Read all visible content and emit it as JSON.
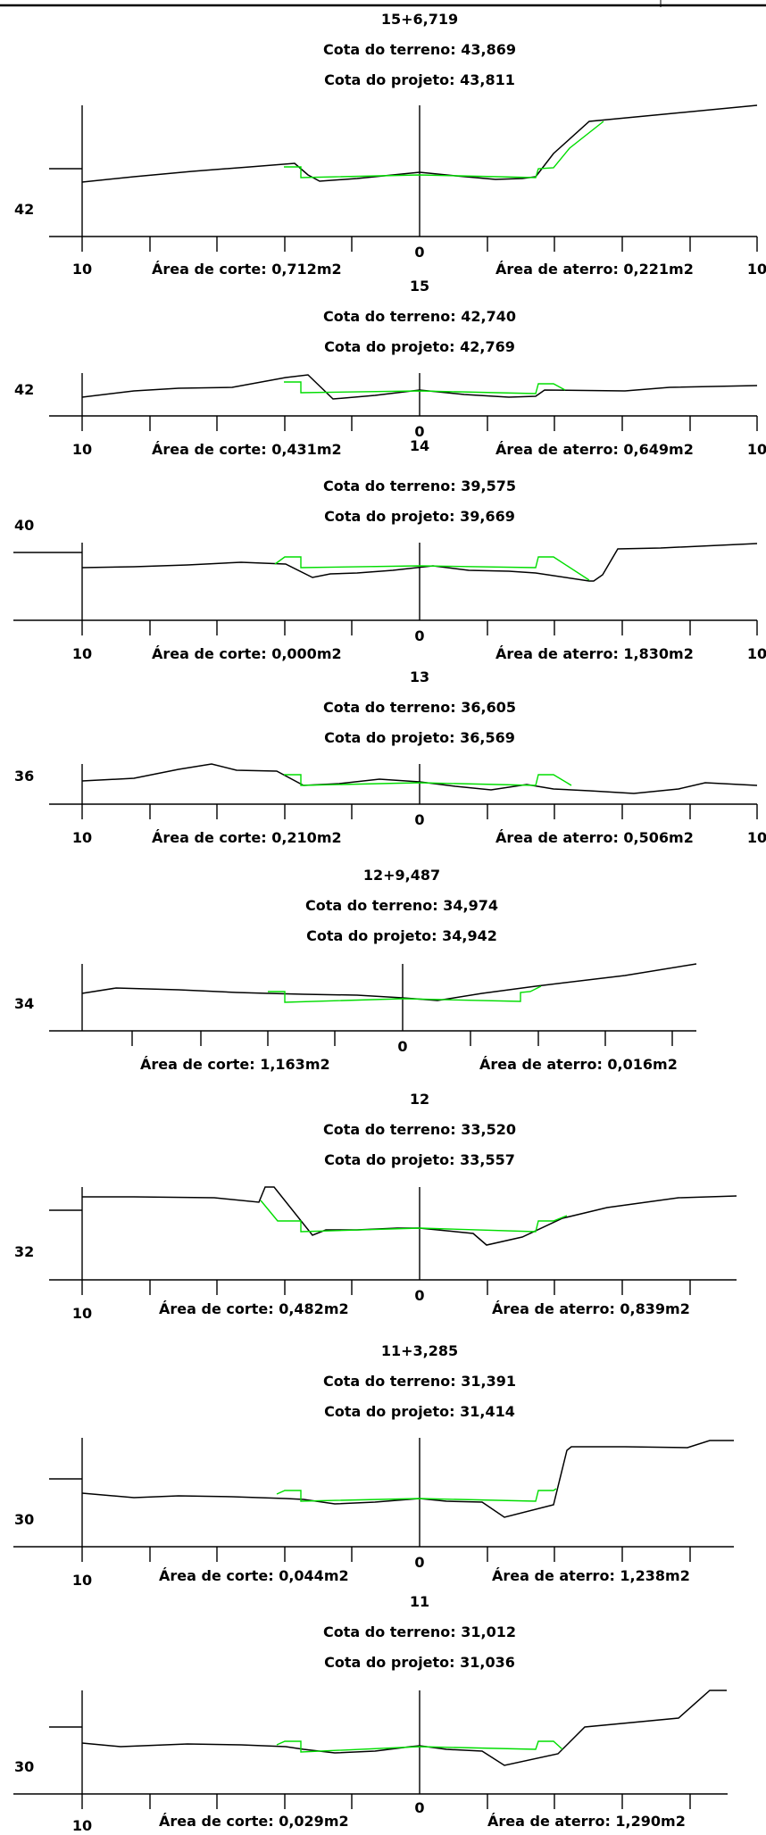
{
  "sections": [
    {
      "station": "15+6,719",
      "terreno_label": "Cota do terreno: 43,869",
      "projeto_label": "Cota do projeto: 43,811",
      "elev_label": "42",
      "center_label": "0",
      "left_offset_label": "10",
      "right_offset_label": "10",
      "corte_label": "Área de corte: 0,712m2",
      "aterro_label": "Área de aterro: 0,221m2"
    },
    {
      "station": "15",
      "terreno_label": "Cota do terreno: 42,740",
      "projeto_label": "Cota do projeto: 42,769",
      "elev_label": "42",
      "center_label": "0",
      "left_offset_label": "10",
      "right_offset_label": "10",
      "corte_label": "Área de corte: 0,431m2",
      "aterro_label": "Área de aterro: 0,649m2"
    },
    {
      "station": "14",
      "terreno_label": "Cota do terreno: 39,575",
      "projeto_label": "Cota do projeto: 39,669",
      "elev_label": "40",
      "center_label": "0",
      "left_offset_label": "10",
      "right_offset_label": "10",
      "corte_label": "Área de corte: 0,000m2",
      "aterro_label": "Área de aterro: 1,830m2"
    },
    {
      "station": "13",
      "terreno_label": "Cota do terreno: 36,605",
      "projeto_label": "Cota do projeto: 36,569",
      "elev_label": "36",
      "center_label": "0",
      "left_offset_label": "10",
      "right_offset_label": "10",
      "corte_label": "Área de corte: 0,210m2",
      "aterro_label": "Área de aterro: 0,506m2"
    },
    {
      "station": "12+9,487",
      "terreno_label": "Cota do terreno: 34,974",
      "projeto_label": "Cota do projeto: 34,942",
      "elev_label": "34",
      "center_label": "0",
      "corte_label": "Área de corte: 1,163m2",
      "aterro_label": "Área de aterro: 0,016m2"
    },
    {
      "station": "12",
      "terreno_label": "Cota do terreno: 33,520",
      "projeto_label": "Cota do projeto: 33,557",
      "elev_label": "32",
      "center_label": "0",
      "left_offset_label": "10",
      "corte_label": "Área de corte: 0,482m2",
      "aterro_label": "Área de aterro: 0,839m2"
    },
    {
      "station": "11+3,285",
      "terreno_label": "Cota do terreno: 31,391",
      "projeto_label": "Cota do projeto: 31,414",
      "elev_label": "30",
      "center_label": "0",
      "left_offset_label": "10",
      "corte_label": "Área de corte: 0,044m2",
      "aterro_label": "Área de aterro: 1,238m2"
    },
    {
      "station": "11",
      "terreno_label": "Cota do terreno: 31,012",
      "projeto_label": "Cota do projeto: 31,036",
      "elev_label": "30",
      "center_label": "0",
      "left_offset_label": "10",
      "corte_label": "Área de corte: 0,029m2",
      "aterro_label": "Área de aterro: 1,290m2"
    }
  ],
  "colors": {
    "terrain": "#000000",
    "project": "#00dd00"
  }
}
